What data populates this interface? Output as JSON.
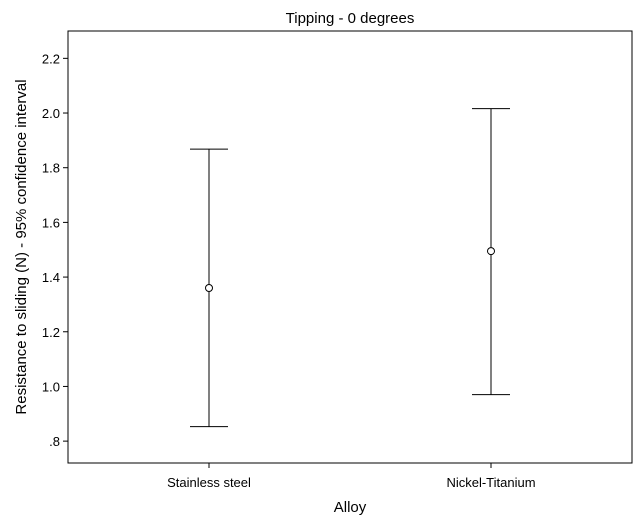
{
  "chart_data": {
    "type": "errorbar",
    "title": "Tipping - 0 degrees",
    "xlabel": "Alloy",
    "ylabel": "Resistance to sliding (N) - 95% confidence interval",
    "categories": [
      "Stainless steel",
      "Nickel-Titanium"
    ],
    "means": [
      1.36,
      1.495
    ],
    "ci_lower": [
      0.853,
      0.97
    ],
    "ci_upper": [
      1.868,
      2.016
    ],
    "ylim": [
      0.72,
      2.3
    ],
    "yticks": [
      0.8,
      1.0,
      1.2,
      1.4,
      1.6,
      1.8,
      2.0,
      2.2
    ],
    "ytick_labels": [
      ".8",
      "1.0",
      "1.2",
      "1.4",
      "1.6",
      "1.8",
      "2.0",
      "2.2"
    ],
    "grid": false,
    "legend": "none"
  }
}
